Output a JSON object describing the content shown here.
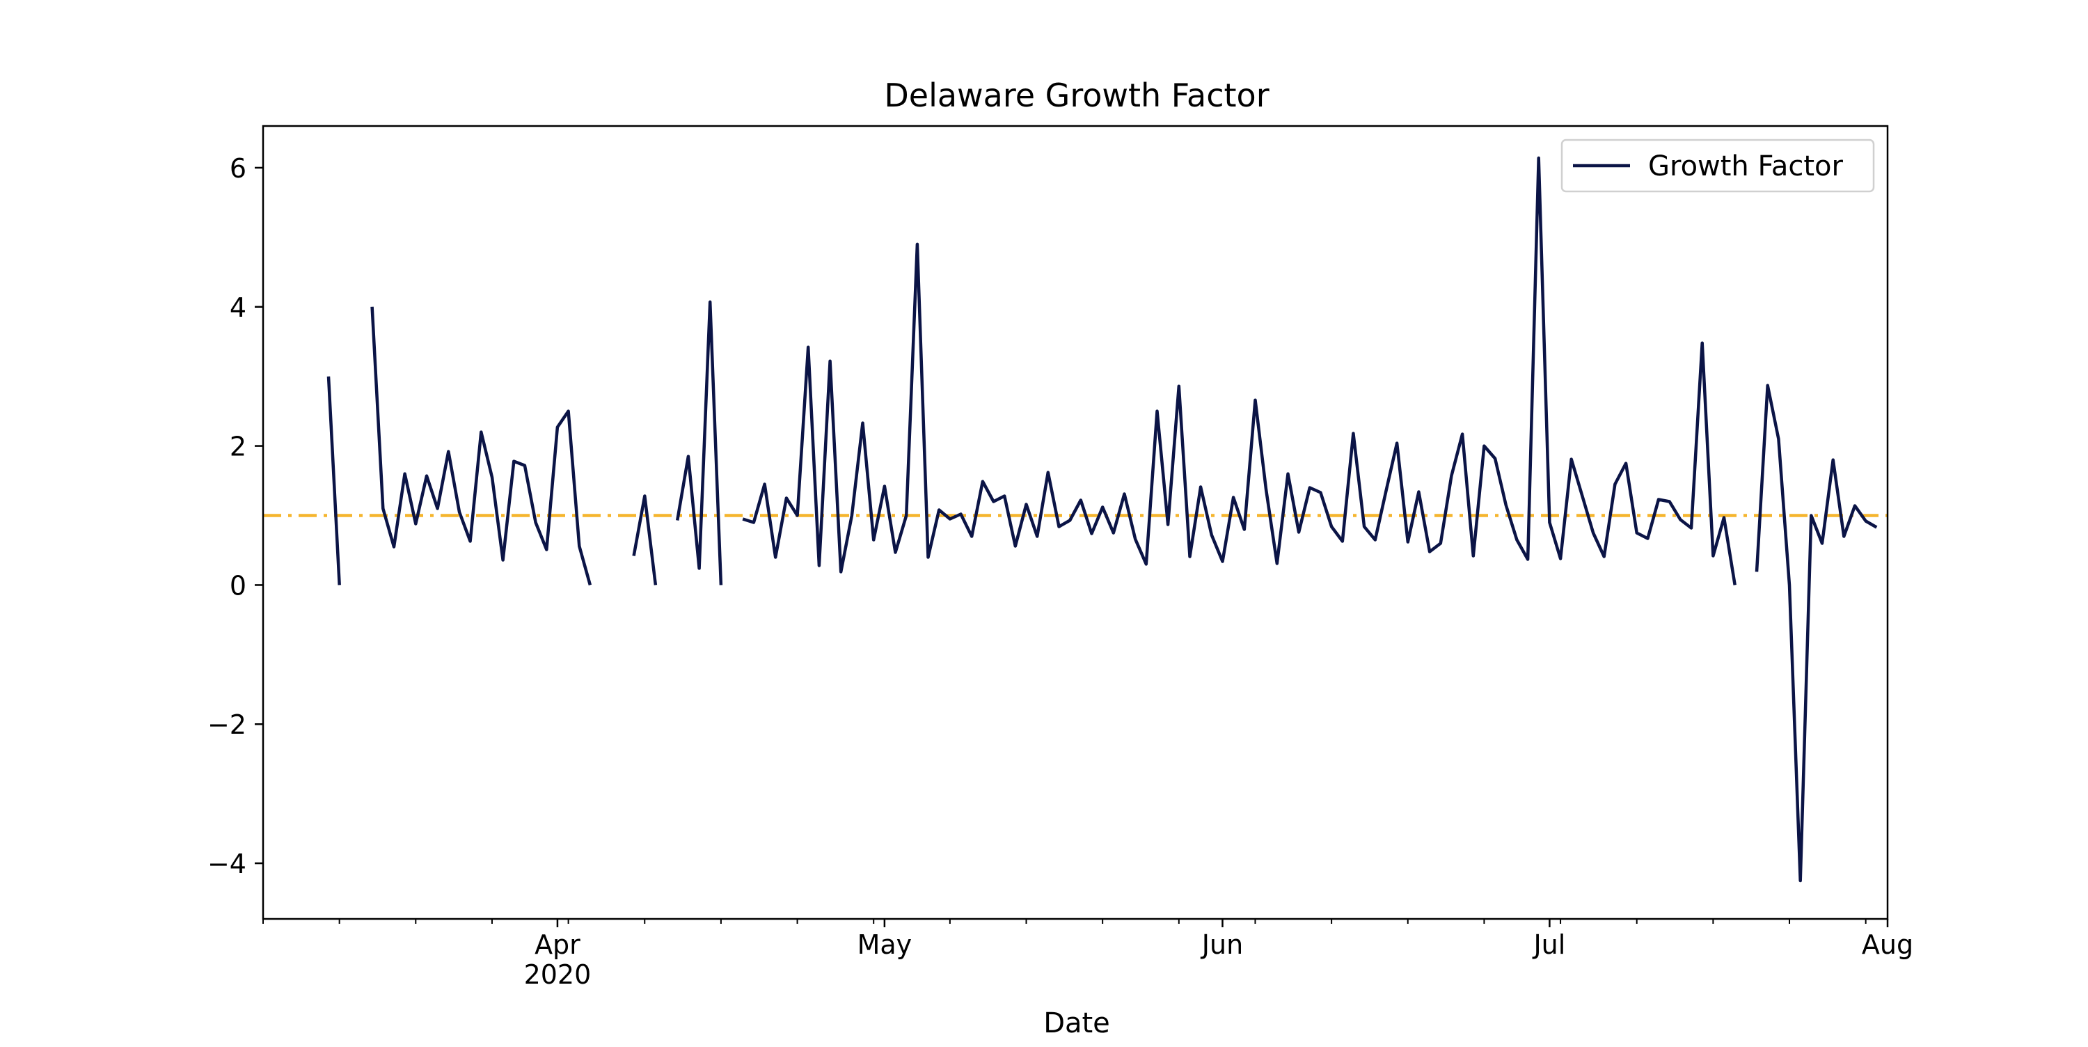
{
  "chart_data": {
    "type": "line",
    "title": "Delaware Growth Factor",
    "xlabel": "Date",
    "ylabel": "",
    "ylim": [
      -4.8,
      6.6
    ],
    "xlim": [
      "2020-03-05",
      "2020-08-01"
    ],
    "yticks": [
      -4,
      -2,
      0,
      2,
      4,
      6
    ],
    "ytick_labels": [
      "−4",
      "−2",
      "0",
      "2",
      "4",
      "6"
    ],
    "xticks": [
      {
        "date": "2020-04-01",
        "label": "Apr",
        "sublabel": "2020"
      },
      {
        "date": "2020-05-01",
        "label": "May",
        "sublabel": ""
      },
      {
        "date": "2020-06-01",
        "label": "Jun",
        "sublabel": ""
      },
      {
        "date": "2020-07-01",
        "label": "Jul",
        "sublabel": ""
      },
      {
        "date": "2020-08-01",
        "label": "Aug",
        "sublabel": ""
      }
    ],
    "legend": {
      "placement": "upper-right",
      "entries": [
        "Growth Factor"
      ]
    },
    "grid": false,
    "colors": {
      "series": "#0b1446",
      "reference": "#f5b52e"
    },
    "reference_line": {
      "y": 1,
      "style": "dash-dot"
    },
    "series": [
      {
        "name": "Growth Factor",
        "x_start": "2020-03-05",
        "x_step_days": 1,
        "values": [
          null,
          null,
          null,
          null,
          null,
          null,
          3.0,
          0.0,
          null,
          null,
          4.0,
          1.1,
          0.55,
          1.6,
          0.88,
          1.57,
          1.1,
          1.92,
          1.05,
          0.63,
          2.2,
          1.55,
          0.36,
          1.78,
          1.72,
          0.9,
          0.51,
          2.27,
          2.5,
          0.56,
          0.0,
          null,
          null,
          null,
          0.42,
          1.28,
          0.0,
          null,
          0.93,
          1.85,
          0.24,
          4.07,
          0.0,
          null,
          0.95,
          0.9,
          1.45,
          0.4,
          1.25,
          1.0,
          3.42,
          0.28,
          3.22,
          0.19,
          1.0,
          2.33,
          0.65,
          1.42,
          0.47,
          1.0,
          4.9,
          0.4,
          1.08,
          0.95,
          1.02,
          0.7,
          1.49,
          1.2,
          1.28,
          0.56,
          1.16,
          0.7,
          1.62,
          0.84,
          0.93,
          1.22,
          0.74,
          1.12,
          0.75,
          1.31,
          0.66,
          0.3,
          2.5,
          0.87,
          2.86,
          0.41,
          1.41,
          0.72,
          0.34,
          1.26,
          0.8,
          2.66,
          1.37,
          0.31,
          1.6,
          0.76,
          1.4,
          1.33,
          0.84,
          0.63,
          2.18,
          0.84,
          0.65,
          1.35,
          2.04,
          0.62,
          1.34,
          0.48,
          0.6,
          1.57,
          2.17,
          0.42,
          2.0,
          1.82,
          1.15,
          0.65,
          0.37,
          6.14,
          0.9,
          0.38,
          1.81,
          1.28,
          0.75,
          0.41,
          1.45,
          1.75,
          0.75,
          0.67,
          1.23,
          1.2,
          0.94,
          0.82,
          3.48,
          0.42,
          0.97,
          0.0,
          null,
          0.19,
          2.87,
          2.1,
          0.0,
          -4.25,
          1.0,
          0.6,
          1.8,
          0.7,
          1.14,
          0.92,
          0.83
        ]
      }
    ]
  }
}
